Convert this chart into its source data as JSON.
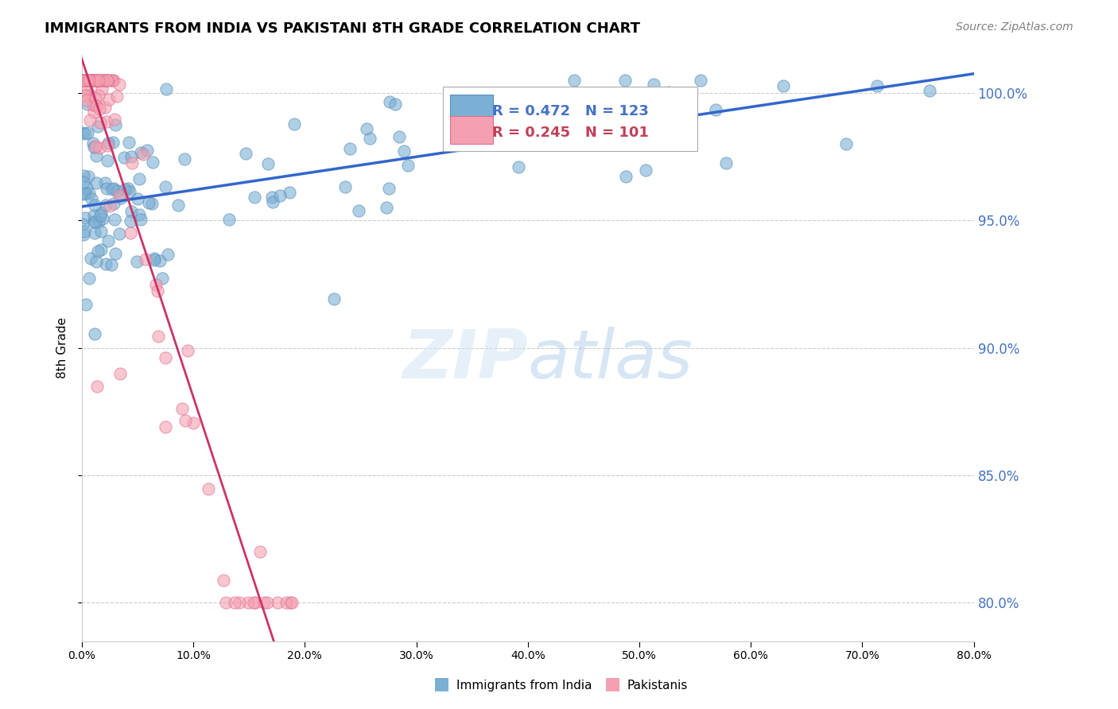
{
  "title": "IMMIGRANTS FROM INDIA VS PAKISTANI 8TH GRADE CORRELATION CHART",
  "source": "Source: ZipAtlas.com",
  "ylabel": "8th Grade",
  "ytick_labels": [
    "100.0%",
    "95.0%",
    "90.0%",
    "85.0%",
    "80.0%"
  ],
  "ytick_values": [
    1.0,
    0.95,
    0.9,
    0.85,
    0.8
  ],
  "xlim": [
    0.0,
    0.8
  ],
  "ylim": [
    0.785,
    1.015
  ],
  "india_color": "#7BAFD4",
  "india_edge": "#5B8DB8",
  "pakistan_color": "#F4A0B0",
  "pakistan_edge": "#E07090",
  "trend_india_color": "#3366CC",
  "trend_pakistan_color": "#CC3366",
  "R_india": 0.472,
  "N_india": 123,
  "R_pakistan": 0.245,
  "N_pakistan": 101,
  "legend_labels": [
    "Immigrants from India",
    "Pakistanis"
  ]
}
